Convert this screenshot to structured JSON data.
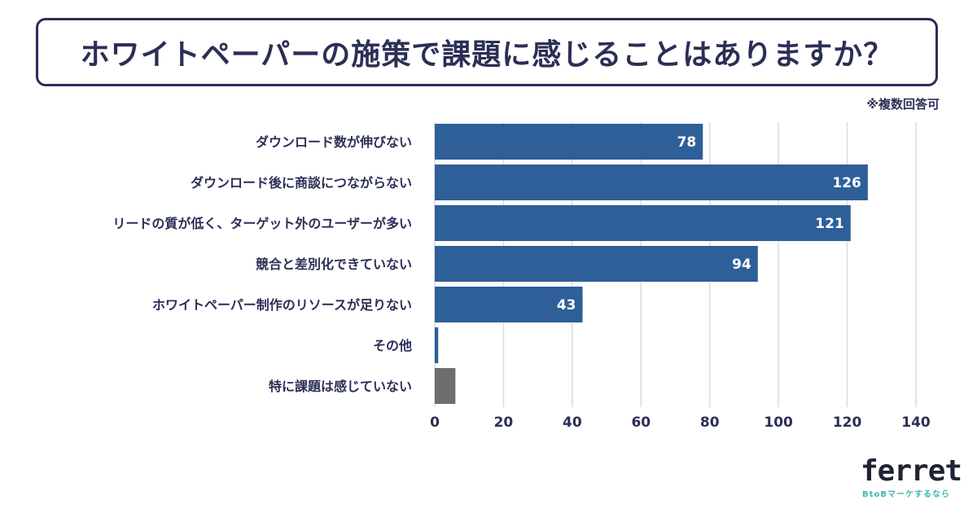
{
  "title": "ホワイトペーパーの施策で課題に感じることはありますか？",
  "note": "※複数回答可",
  "logo": {
    "name": "ferret",
    "tagline": "BtoBマーケするなら"
  },
  "colors": {
    "bar": "#2f5f98",
    "bar_other": "#6e6e6e",
    "text": "#2b2f55",
    "grid": "#d9dbe3"
  },
  "chart_data": {
    "type": "bar",
    "orientation": "horizontal",
    "title": "ホワイトペーパーの施策で課題に感じることはありますか？",
    "categories": [
      "ダウンロード数が伸びない",
      "ダウンロード後に商談につながらない",
      "リードの質が低く、ターゲット外のユーザーが多い",
      "競合と差別化できていない",
      "ホワイトペーパー制作のリソースが足りない",
      "その他",
      "特に課題は感じていない"
    ],
    "values": [
      78,
      126,
      121,
      94,
      43,
      1,
      6
    ],
    "value_labels": [
      "78",
      "126",
      "121",
      "94",
      "43",
      "",
      ""
    ],
    "xlim": [
      0,
      140
    ],
    "xticks": [
      0,
      20,
      40,
      60,
      80,
      100,
      120,
      140
    ],
    "grid": true,
    "xlabel": "",
    "ylabel": ""
  }
}
